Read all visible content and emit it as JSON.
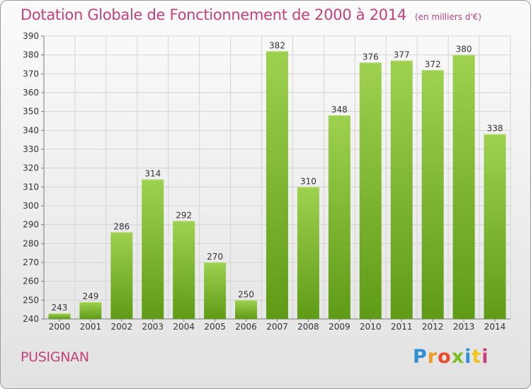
{
  "header": {
    "title": "Dotation Globale de Fonctionnement de 2000 à 2014",
    "unit": "(en milliers d'€)"
  },
  "footer": {
    "commune": "PUSIGNAN",
    "logo_text": "Proxiti"
  },
  "colors": {
    "title": "#c8407a",
    "bar_top": "#9ed150",
    "bar_bottom": "#5f9b16",
    "grid": "#d4d4d4"
  },
  "chart_data": {
    "type": "bar",
    "title": "Dotation Globale de Fonctionnement de 2000 à 2014",
    "subtitle": "(en milliers d'€)",
    "xlabel": "",
    "ylabel": "",
    "categories": [
      "2000",
      "2001",
      "2002",
      "2003",
      "2004",
      "2005",
      "2006",
      "2007",
      "2008",
      "2009",
      "2010",
      "2011",
      "2012",
      "2013",
      "2014"
    ],
    "values": [
      243,
      249,
      286,
      314,
      292,
      270,
      250,
      382,
      310,
      348,
      376,
      377,
      372,
      380,
      338
    ],
    "ylim": [
      240,
      390
    ],
    "yticks": [
      240,
      250,
      260,
      270,
      280,
      290,
      300,
      310,
      320,
      330,
      340,
      350,
      360,
      370,
      380,
      390
    ],
    "grid": true,
    "data_labels": true
  }
}
